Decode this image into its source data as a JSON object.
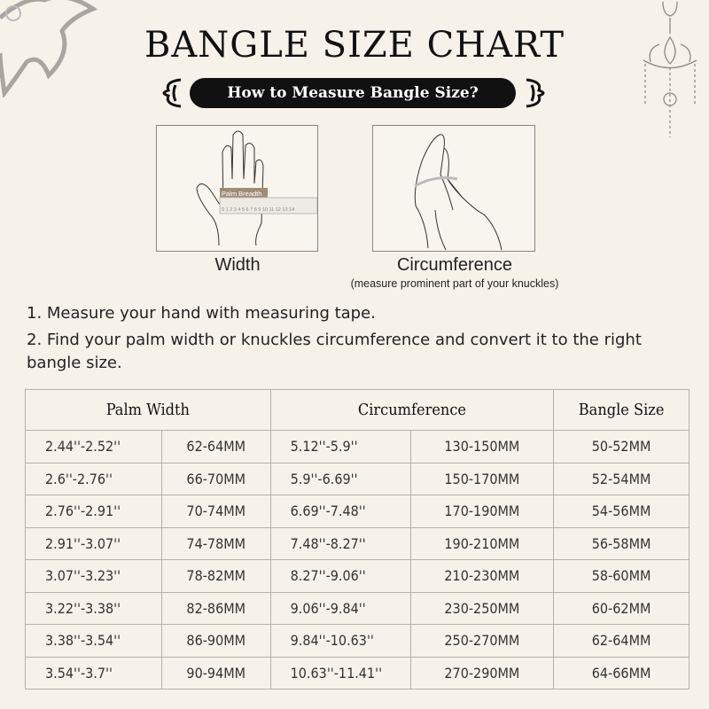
{
  "title": "BANGLE SIZE CHART",
  "subtitle": "How to Measure Bangle Size?",
  "illustrations": {
    "width": {
      "caption": "Width",
      "ruler_label": "Palm Breadth",
      "ruler_numbers": "0 1 2 3 4 5 6 7 8 9 10 11 12 13 14"
    },
    "circumference": {
      "caption": "Circumference",
      "note": "(measure prominent part of your knuckles)"
    }
  },
  "steps": [
    "1. Measure your hand with measuring tape.",
    "2. Find your palm width or knuckles circumference and convert it to the right bangle size."
  ],
  "table": {
    "headers": [
      "Palm Width",
      "Circumference",
      "Bangle Size"
    ],
    "rows": [
      [
        "2.44''-2.52''",
        "62-64MM",
        "5.12''-5.9''",
        "130-150MM",
        "50-52MM"
      ],
      [
        "2.6''-2.76''",
        "66-70MM",
        "5.9''-6.69''",
        "150-170MM",
        "52-54MM"
      ],
      [
        "2.76''-2.91''",
        "70-74MM",
        "6.69''-7.48''",
        "170-190MM",
        "54-56MM"
      ],
      [
        "2.91''-3.07''",
        "74-78MM",
        "7.48''-8.27''",
        "190-210MM",
        "56-58MM"
      ],
      [
        "3.07''-3.23''",
        "78-82MM",
        "8.27''-9.06''",
        "210-230MM",
        "58-60MM"
      ],
      [
        "3.22''-3.38''",
        "82-86MM",
        "9.06''-9.84''",
        "230-250MM",
        "60-62MM"
      ],
      [
        "3.38''-3.54''",
        "86-90MM",
        "9.84''-10.63''",
        "250-270MM",
        "62-64MM"
      ],
      [
        "3.54''-3.7''",
        "90-94MM",
        "10.63''-11.41''",
        "270-290MM",
        "64-66MM"
      ]
    ]
  },
  "colors": {
    "background": "#f6f2ea",
    "pill": "#111111",
    "border": "#b5b1ab",
    "ruler_label": "#a08c76"
  }
}
